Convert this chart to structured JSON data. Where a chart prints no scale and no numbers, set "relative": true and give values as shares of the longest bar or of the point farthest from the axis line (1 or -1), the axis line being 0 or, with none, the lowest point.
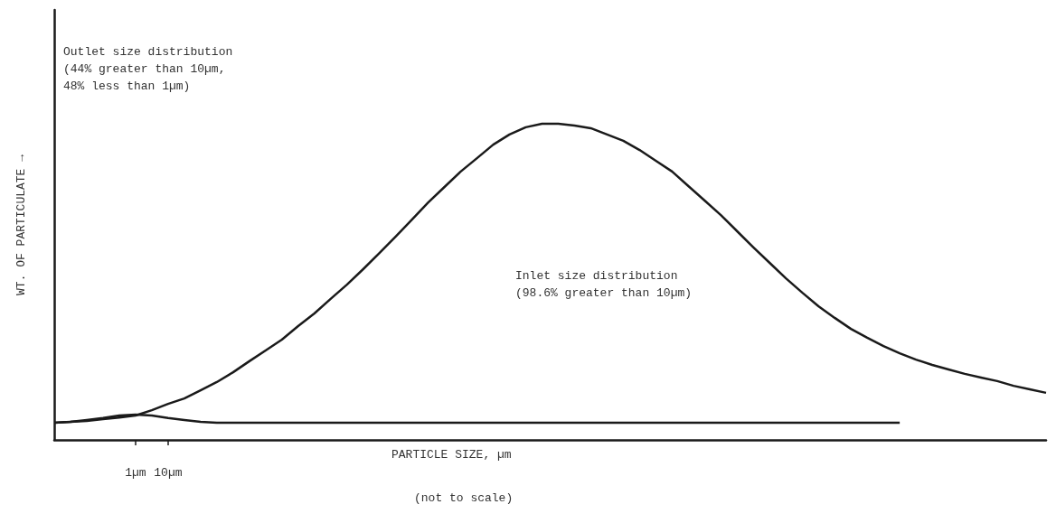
{
  "chart_data": {
    "type": "line",
    "relative": true,
    "marker": "none",
    "xlabel": "PARTICLE SIZE, µm",
    "ylabel": "WT. OF PARTICULATE →",
    "annotations": [
      "Outlet size distribution\n(44% greater than 10µm,\n48% less than 1µm)",
      "Inlet size distribution\n(98.6% greater than 10µm)",
      "(not to scale)"
    ],
    "categories": [
      null,
      null,
      null,
      null,
      null,
      "1µm",
      null,
      "10µm",
      null,
      null,
      null,
      null,
      null,
      null,
      null,
      null,
      null,
      null,
      null,
      null,
      null,
      null,
      null,
      null,
      null,
      null,
      null,
      null,
      null,
      null,
      null,
      null,
      null,
      null,
      null,
      null,
      null,
      null,
      null,
      null,
      null,
      null,
      null,
      null,
      null,
      null,
      null,
      null,
      null,
      null,
      null,
      null,
      null,
      null,
      null,
      null,
      null,
      null,
      null,
      null,
      null,
      null
    ],
    "series": [
      {
        "color": "#1a1a1a",
        "values": [
          0.054,
          0.057,
          0.06,
          0.066,
          0.071,
          0.077,
          0.094,
          0.114,
          0.131,
          0.157,
          0.183,
          0.214,
          0.249,
          0.283,
          0.317,
          0.36,
          0.4,
          0.446,
          0.491,
          0.54,
          0.591,
          0.643,
          0.697,
          0.751,
          0.8,
          0.849,
          0.891,
          0.934,
          0.966,
          0.989,
          1,
          1,
          0.994,
          0.986,
          0.966,
          0.946,
          0.917,
          0.883,
          0.849,
          0.803,
          0.757,
          0.711,
          0.66,
          0.609,
          0.56,
          0.511,
          0.466,
          0.423,
          0.386,
          0.351,
          0.323,
          0.297,
          0.274,
          0.254,
          0.237,
          0.223,
          0.209,
          0.197,
          0.186,
          0.171,
          0.16,
          0.149
        ]
      },
      {
        "color": "#1a1a1a",
        "values": [
          0.054,
          0.057,
          0.063,
          0.069,
          0.077,
          0.08,
          0.077,
          0.069,
          0.063,
          0.057,
          0.054,
          0.054,
          0.054,
          0.054,
          0.054,
          0.054,
          0.054,
          0.054,
          0.054,
          0.054,
          0.054,
          0.054,
          0.054,
          0.054,
          0.054,
          0.054,
          0.054,
          0.054,
          0.054,
          0.054,
          0.054,
          0.054,
          0.054,
          0.054,
          0.054,
          0.054,
          0.054,
          0.054,
          0.054,
          0.054,
          0.054,
          0.054,
          0.054,
          0.054,
          0.054,
          0.054,
          0.054,
          0.054,
          0.054,
          0.054,
          0.054,
          0.054,
          0.054,
          null,
          null,
          null,
          null,
          null,
          null,
          null,
          null,
          null
        ]
      }
    ]
  }
}
